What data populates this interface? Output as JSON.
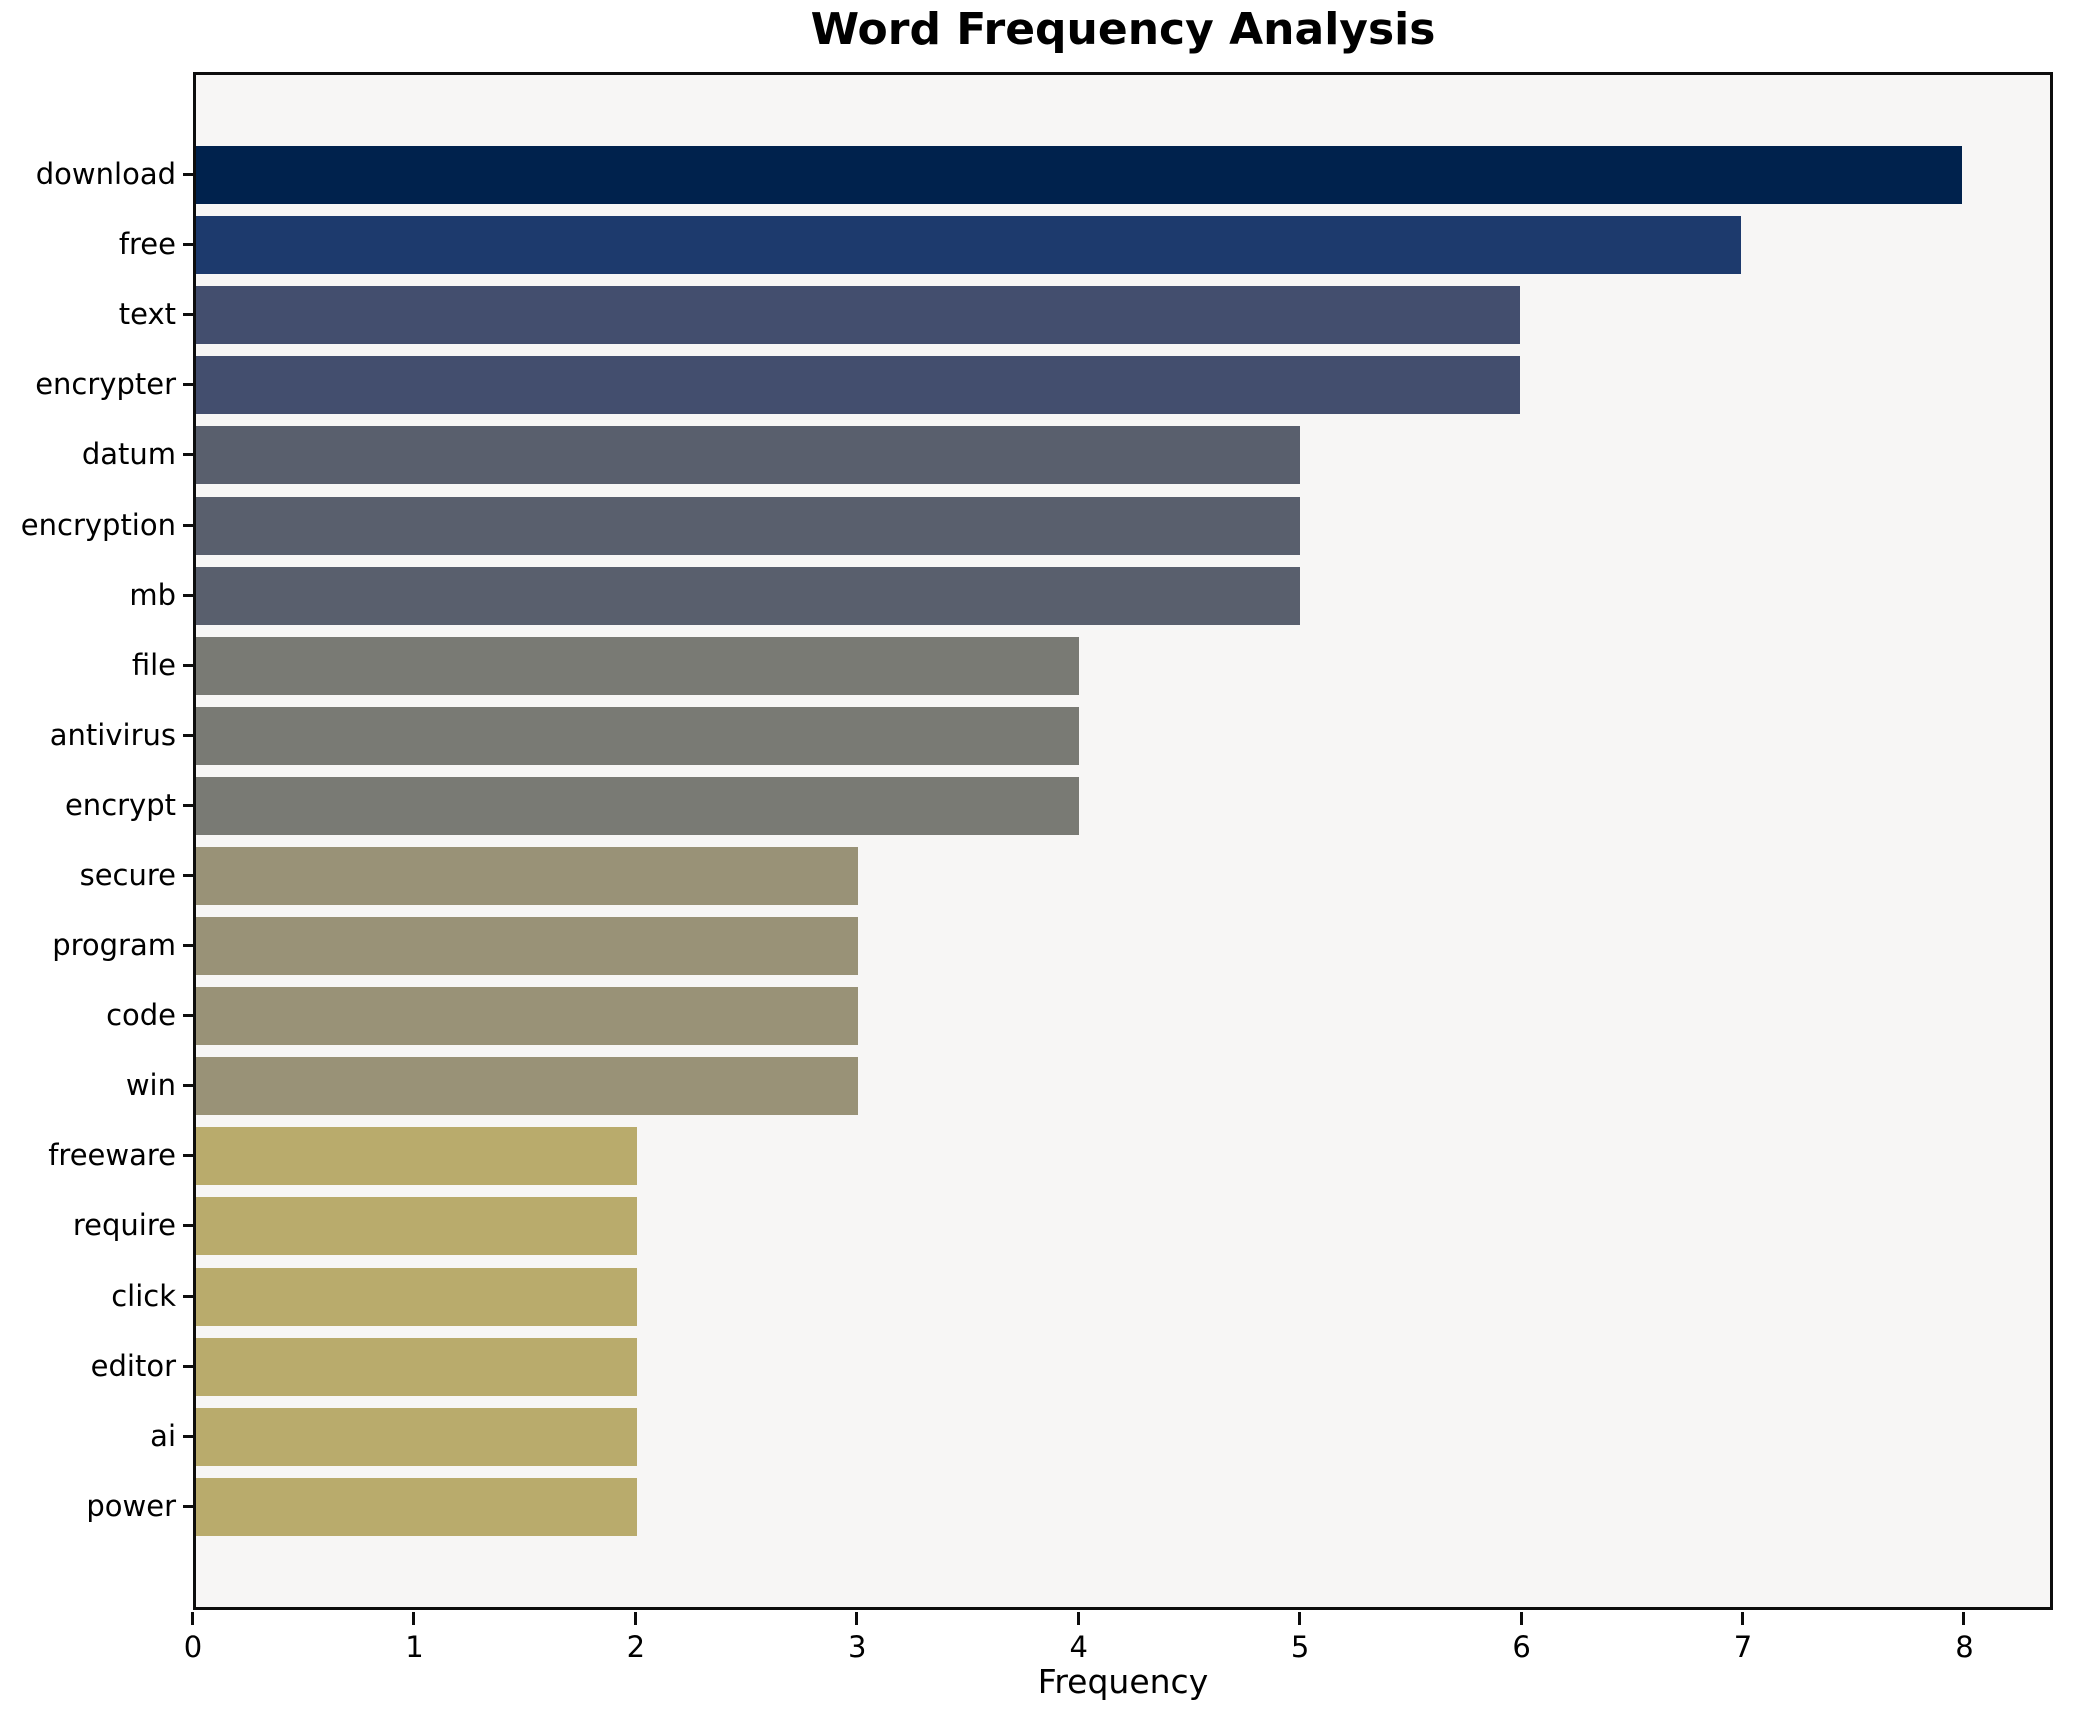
{
  "chart_data": {
    "type": "bar",
    "orientation": "horizontal",
    "title": "Word Frequency Analysis",
    "xlabel": "Frequency",
    "ylabel": "",
    "categories": [
      "download",
      "free",
      "text",
      "encrypter",
      "datum",
      "encryption",
      "mb",
      "file",
      "antivirus",
      "encrypt",
      "secure",
      "program",
      "code",
      "win",
      "freeware",
      "require",
      "click",
      "editor",
      "ai",
      "power"
    ],
    "values": [
      8,
      7,
      6,
      6,
      5,
      5,
      5,
      4,
      4,
      4,
      3,
      3,
      3,
      3,
      2,
      2,
      2,
      2,
      2,
      2
    ],
    "bar_colors": [
      "#00224d",
      "#1d3a6d",
      "#434e6e",
      "#434e6e",
      "#595f6d",
      "#595f6d",
      "#595f6d",
      "#797a74",
      "#797a74",
      "#797a74",
      "#999277",
      "#999277",
      "#999277",
      "#999277",
      "#b9ab6c",
      "#b9ab6c",
      "#b9ab6c",
      "#b9ab6c",
      "#b9ab6c",
      "#b9ab6c"
    ],
    "xlim": [
      0,
      8.4
    ],
    "xticks": [
      0,
      1,
      2,
      3,
      4,
      5,
      6,
      7,
      8
    ],
    "grid": false,
    "legend": "none",
    "plot_background": "#f7f6f5",
    "figure_background": "#ffffff",
    "spine_color": "#0d0d0d",
    "text_color": "#000000"
  }
}
